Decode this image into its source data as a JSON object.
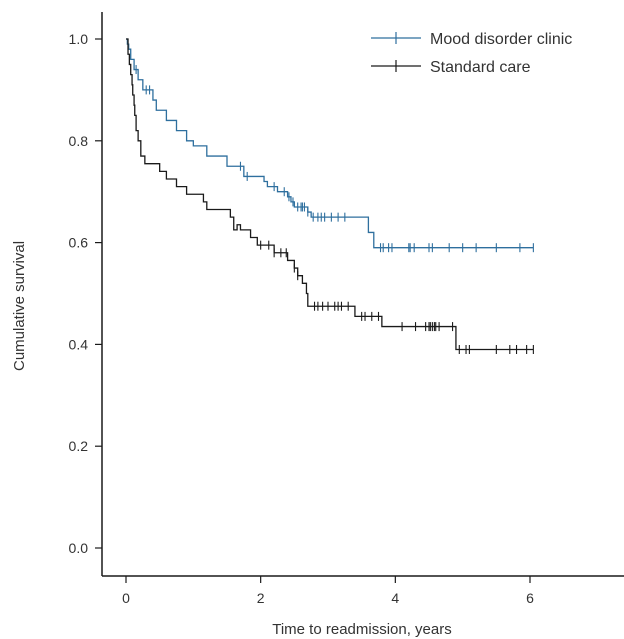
{
  "chart_data": {
    "type": "line",
    "subtype": "kaplan-meier-survival",
    "title": "",
    "xlabel": "Time to readmission, years",
    "ylabel": "Cumulative survival",
    "xlim": [
      -0.2,
      7.4
    ],
    "ylim": [
      -0.05,
      1.05
    ],
    "xticks": [
      0,
      2,
      4,
      6
    ],
    "yticks": [
      0.0,
      0.2,
      0.4,
      0.6,
      0.8,
      1.0
    ],
    "xtick_labels": [
      "0",
      "2",
      "4",
      "6"
    ],
    "ytick_labels": [
      "0.0",
      "0.2",
      "0.4",
      "0.6",
      "0.8",
      "1.0"
    ],
    "grid": false,
    "legend_position": "top-right",
    "series": [
      {
        "name": "Mood disorder clinic",
        "color": "#2e6f9e",
        "steps": [
          [
            0,
            1.0
          ],
          [
            0.02,
            0.99
          ],
          [
            0.04,
            0.98
          ],
          [
            0.07,
            0.96
          ],
          [
            0.12,
            0.94
          ],
          [
            0.18,
            0.92
          ],
          [
            0.25,
            0.9
          ],
          [
            0.4,
            0.88
          ],
          [
            0.45,
            0.86
          ],
          [
            0.6,
            0.84
          ],
          [
            0.75,
            0.82
          ],
          [
            0.9,
            0.8
          ],
          [
            1.0,
            0.79
          ],
          [
            1.2,
            0.77
          ],
          [
            1.5,
            0.75
          ],
          [
            1.75,
            0.73
          ],
          [
            2.05,
            0.72
          ],
          [
            2.1,
            0.71
          ],
          [
            2.25,
            0.7
          ],
          [
            2.4,
            0.69
          ],
          [
            2.45,
            0.68
          ],
          [
            2.5,
            0.67
          ],
          [
            2.7,
            0.66
          ],
          [
            2.75,
            0.65
          ],
          [
            3.6,
            0.62
          ],
          [
            3.68,
            0.59
          ]
        ],
        "end_x": 6.05,
        "censored": [
          0.15,
          0.3,
          0.35,
          1.7,
          1.8,
          2.2,
          2.35,
          2.42,
          2.48,
          2.55,
          2.6,
          2.62,
          2.65,
          2.7,
          2.78,
          2.85,
          2.9,
          2.95,
          3.05,
          3.15,
          3.25,
          3.78,
          3.82,
          3.9,
          3.95,
          4.2,
          4.22,
          4.28,
          4.5,
          4.55,
          4.8,
          5.0,
          5.2,
          5.5,
          5.85,
          6.05
        ]
      },
      {
        "name": "Standard care",
        "color": "#1a1a1a",
        "steps": [
          [
            0,
            1.0
          ],
          [
            0.03,
            0.97
          ],
          [
            0.05,
            0.95
          ],
          [
            0.07,
            0.93
          ],
          [
            0.09,
            0.91
          ],
          [
            0.1,
            0.89
          ],
          [
            0.12,
            0.87
          ],
          [
            0.13,
            0.85
          ],
          [
            0.15,
            0.82
          ],
          [
            0.18,
            0.8
          ],
          [
            0.22,
            0.77
          ],
          [
            0.28,
            0.755
          ],
          [
            0.5,
            0.74
          ],
          [
            0.6,
            0.725
          ],
          [
            0.75,
            0.71
          ],
          [
            0.9,
            0.695
          ],
          [
            1.15,
            0.68
          ],
          [
            1.2,
            0.665
          ],
          [
            1.55,
            0.65
          ],
          [
            1.65,
            0.635
          ],
          [
            1.7,
            0.625
          ],
          [
            1.6,
            0.625
          ],
          [
            1.85,
            0.61
          ],
          [
            1.95,
            0.595
          ],
          [
            2.2,
            0.58
          ],
          [
            2.4,
            0.565
          ],
          [
            2.5,
            0.55
          ],
          [
            2.55,
            0.535
          ],
          [
            2.62,
            0.52
          ],
          [
            2.68,
            0.5
          ],
          [
            2.7,
            0.475
          ],
          [
            3.4,
            0.455
          ],
          [
            3.8,
            0.435
          ],
          [
            4.9,
            0.39
          ]
        ],
        "end_x": 6.05,
        "censored": [
          2.0,
          2.12,
          2.2,
          2.3,
          2.38,
          2.5,
          2.55,
          2.8,
          2.85,
          2.92,
          3.0,
          3.1,
          3.15,
          3.2,
          3.3,
          3.5,
          3.55,
          3.65,
          3.75,
          4.1,
          4.3,
          4.45,
          4.5,
          4.52,
          4.55,
          4.58,
          4.6,
          4.65,
          4.85,
          4.95,
          5.05,
          5.1,
          5.5,
          5.7,
          5.8,
          5.95,
          6.05
        ]
      }
    ]
  }
}
